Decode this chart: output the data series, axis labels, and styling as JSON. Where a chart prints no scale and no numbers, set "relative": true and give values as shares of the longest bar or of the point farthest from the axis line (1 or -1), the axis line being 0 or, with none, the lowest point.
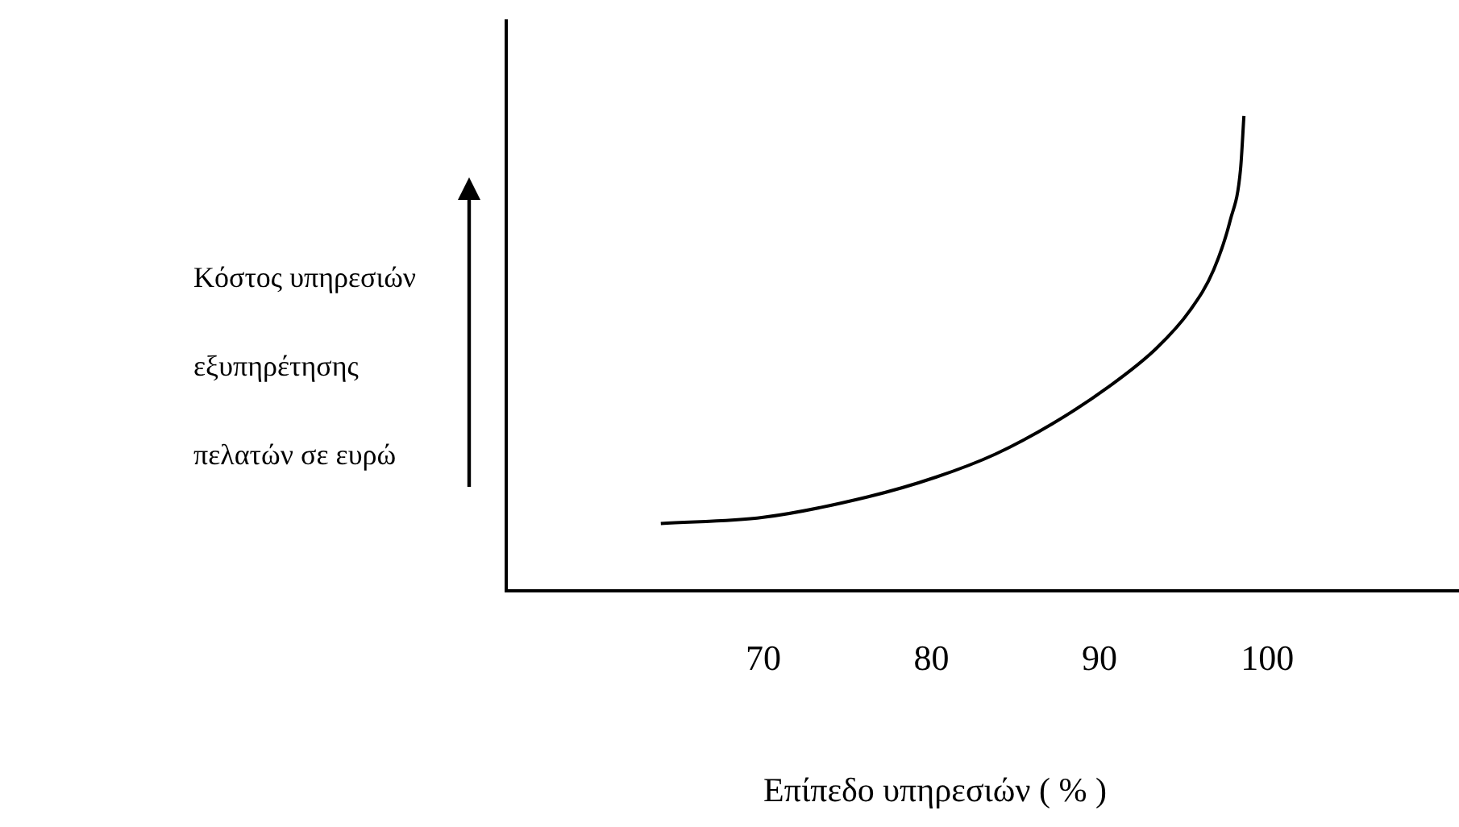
{
  "chart_data": {
    "type": "line",
    "relative": true,
    "xlabel": "Επίπεδο υπηρεσιών ( % )",
    "ylabel": "Κόστος υπηρεσιών εξυπηρέτησης πελατών σε ευρώ",
    "xlim": [
      54.7,
      111.4
    ],
    "xticks": [
      70,
      80,
      90,
      100
    ],
    "grid": false,
    "legend": false,
    "marker": "none",
    "line_style": "solid",
    "series": [
      {
        "color": "#000000",
        "x": [
          63.9,
          70.0,
          76.2,
          80.3,
          83.8,
          87.2,
          90.6,
          93.4,
          95.4,
          96.8,
          97.8,
          98.4,
          98.6
        ],
        "values": [
          0.142,
          0.155,
          0.198,
          0.24,
          0.288,
          0.352,
          0.431,
          0.511,
          0.591,
          0.676,
          0.782,
          0.888,
          1
        ]
      }
    ]
  }
}
